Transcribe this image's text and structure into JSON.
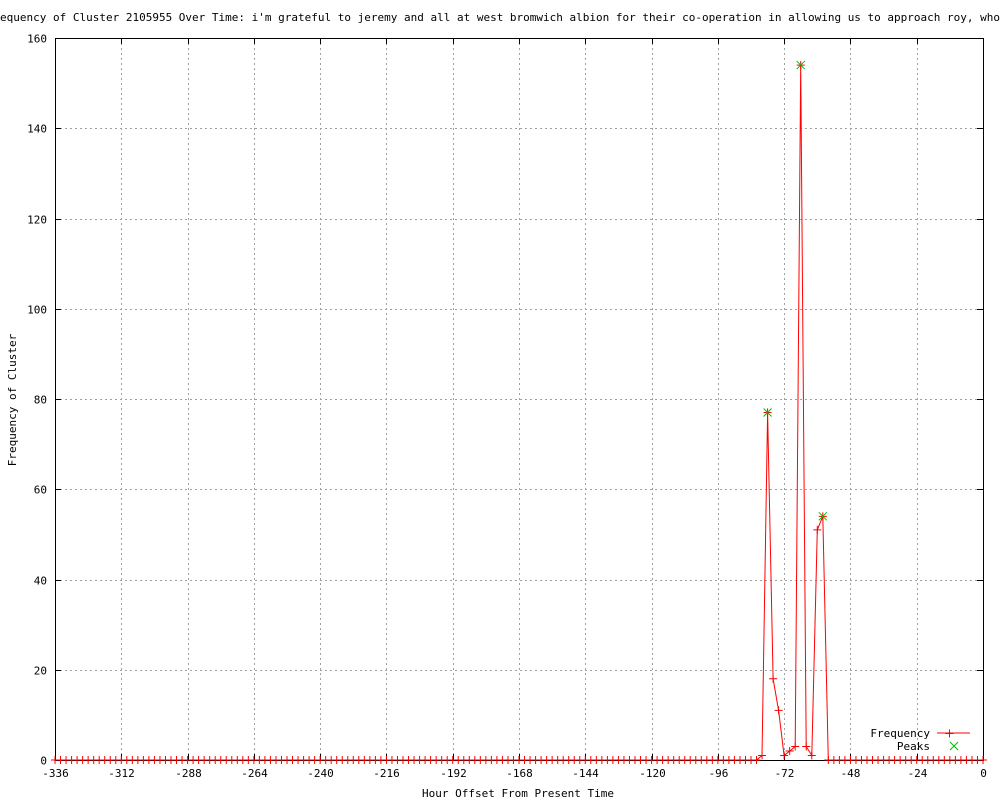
{
  "chart_data": {
    "type": "line",
    "title": "equency of Cluster 2105955 Over Time: i'm grateful to jeremy and all at west bromwich albion for their co-operation in allowing us to approach roy, who i have since spo",
    "xlabel": "Hour Offset From Present Time",
    "ylabel": "Frequency of Cluster",
    "xlim": [
      -336,
      0
    ],
    "ylim": [
      0,
      160
    ],
    "xticks": [
      -336,
      -312,
      -288,
      -264,
      -240,
      -216,
      -192,
      -168,
      -144,
      -120,
      -96,
      -72,
      -48,
      -24,
      0
    ],
    "yticks": [
      0,
      20,
      40,
      60,
      80,
      100,
      120,
      140,
      160
    ],
    "grid": true,
    "legend_position": "bottom-right",
    "colors": {
      "frequency": "#ff0000",
      "peaks": "#00c000",
      "grid": "#a0a0a0"
    },
    "series": [
      {
        "name": "Frequency",
        "marker": "plus",
        "x": [
          -336,
          -334,
          -332,
          -330,
          -328,
          -326,
          -324,
          -322,
          -320,
          -318,
          -316,
          -314,
          -312,
          -310,
          -308,
          -306,
          -304,
          -302,
          -300,
          -298,
          -296,
          -294,
          -292,
          -290,
          -288,
          -286,
          -284,
          -282,
          -280,
          -278,
          -276,
          -274,
          -272,
          -270,
          -268,
          -266,
          -264,
          -262,
          -260,
          -258,
          -256,
          -254,
          -252,
          -250,
          -248,
          -246,
          -244,
          -242,
          -240,
          -238,
          -236,
          -234,
          -232,
          -230,
          -228,
          -226,
          -224,
          -222,
          -220,
          -218,
          -216,
          -214,
          -212,
          -210,
          -208,
          -206,
          -204,
          -202,
          -200,
          -198,
          -196,
          -194,
          -192,
          -190,
          -188,
          -186,
          -184,
          -182,
          -180,
          -178,
          -176,
          -174,
          -172,
          -170,
          -168,
          -166,
          -164,
          -162,
          -160,
          -158,
          -156,
          -154,
          -152,
          -150,
          -148,
          -146,
          -144,
          -142,
          -140,
          -138,
          -136,
          -134,
          -132,
          -130,
          -128,
          -126,
          -124,
          -122,
          -120,
          -118,
          -116,
          -114,
          -112,
          -110,
          -108,
          -106,
          -104,
          -102,
          -100,
          -98,
          -96,
          -94,
          -92,
          -90,
          -88,
          -86,
          -84,
          -82,
          -80,
          -78,
          -76,
          -74,
          -72,
          -70,
          -68,
          -66,
          -64,
          -62,
          -60,
          -58,
          -56,
          -54,
          -52,
          -50,
          -48,
          -46,
          -44,
          -42,
          -40,
          -38,
          -36,
          -34,
          -32,
          -30,
          -28,
          -26,
          -24,
          -22,
          -20,
          -18,
          -16,
          -14,
          -12,
          -10,
          -8,
          -6,
          -4,
          -2,
          0
        ],
        "y": [
          0,
          0,
          0,
          0,
          0,
          0,
          0,
          0,
          0,
          0,
          0,
          0,
          0,
          0,
          0,
          0,
          0,
          0,
          0,
          0,
          0,
          0,
          0,
          0,
          0,
          0,
          0,
          0,
          0,
          0,
          0,
          0,
          0,
          0,
          0,
          0,
          0,
          0,
          0,
          0,
          0,
          0,
          0,
          0,
          0,
          0,
          0,
          0,
          0,
          0,
          0,
          0,
          0,
          0,
          0,
          0,
          0,
          0,
          0,
          0,
          0,
          0,
          0,
          0,
          0,
          0,
          0,
          0,
          0,
          0,
          0,
          0,
          0,
          0,
          0,
          0,
          0,
          0,
          0,
          0,
          0,
          0,
          0,
          0,
          0,
          0,
          0,
          0,
          0,
          0,
          0,
          0,
          0,
          0,
          0,
          0,
          0,
          0,
          0,
          0,
          0,
          0,
          0,
          0,
          0,
          0,
          0,
          0,
          0,
          0,
          0,
          0,
          0,
          0,
          0,
          0,
          0,
          0,
          0,
          0,
          0,
          0,
          0,
          0,
          0,
          0,
          0,
          0,
          1,
          77,
          18,
          11,
          1,
          2,
          3,
          154,
          3,
          1,
          51,
          54,
          0,
          0,
          0,
          0,
          0,
          0,
          0,
          0,
          0,
          0,
          0,
          0,
          0,
          0,
          0,
          0,
          0,
          0,
          0,
          0,
          0,
          0,
          0,
          0,
          0,
          0,
          0,
          0,
          0
        ]
      },
      {
        "name": "Peaks",
        "marker": "x",
        "x": [
          -78,
          -66,
          -58
        ],
        "y": [
          77,
          154,
          54
        ]
      }
    ]
  }
}
